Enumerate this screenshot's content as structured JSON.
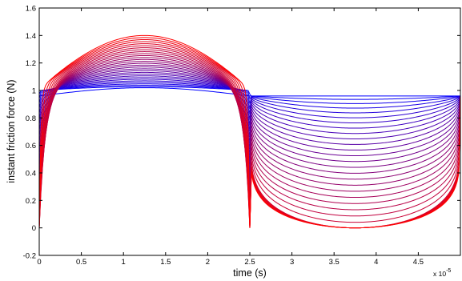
{
  "chart_data": {
    "type": "line",
    "title": "",
    "xlabel": "time (s)",
    "ylabel": "instant friction force (N)",
    "x_multiplier_label": "x 10",
    "x_multiplier_exponent": "-5",
    "xlim": [
      0,
      5
    ],
    "ylim": [
      -0.2,
      1.6
    ],
    "x_ticks": [
      "0",
      "0.5",
      "1",
      "1.5",
      "2",
      "2.5",
      "3",
      "3.5",
      "4",
      "4.5"
    ],
    "y_ticks": [
      "-0.2",
      "0",
      "0.2",
      "0.4",
      "0.6",
      "0.8",
      "1",
      "1.2",
      "1.4",
      "1.6"
    ],
    "x_tick_values": [
      0,
      0.5,
      1,
      1.5,
      2,
      2.5,
      3,
      3.5,
      4,
      4.5
    ],
    "y_tick_values": [
      -0.2,
      0,
      0.2,
      0.4,
      0.6,
      0.8,
      1,
      1.2,
      1.4,
      1.6
    ],
    "grid": false,
    "legend": "none",
    "series_count": 30,
    "color_start": "#0000ff",
    "color_end": "#ff0000",
    "line_width": 1,
    "series_description": "family of curves from blue (nearly flat at 1) to red (peak 1.4 near t=1.25, zero after t=2.5)",
    "key_points": {
      "first_curve": {
        "min": 0.96,
        "max": 1.02
      },
      "last_curve": {
        "peak_x": 1.25,
        "peak_y": 1.4,
        "drop_to_zero_x": 2.5
      },
      "deepest_mid_curve": {
        "trough_x": 3.75,
        "trough_y": 0.0
      }
    }
  }
}
